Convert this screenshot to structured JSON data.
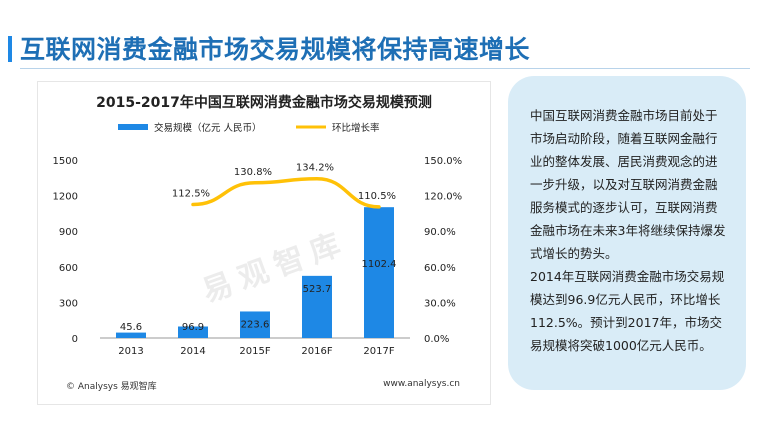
{
  "page": {
    "title": "互联网消费金融市场交易规模将保持高速增长"
  },
  "chart_data": {
    "type": "bar",
    "title": "2015-2017年中国互联网消费金融市场交易规模预测",
    "categories": [
      "2013",
      "2014",
      "2015F",
      "2016F",
      "2017F"
    ],
    "series": [
      {
        "name": "交易规模（亿元 人民币）",
        "type": "bar",
        "axis": "left",
        "color": "#1e88e5",
        "values": [
          45.6,
          96.9,
          223.6,
          523.7,
          1102.4
        ],
        "labels": [
          "45.6",
          "96.9",
          "223.6",
          "523.7",
          "1102.4"
        ]
      },
      {
        "name": "环比增长率",
        "type": "line",
        "axis": "right",
        "color": "#ffc107",
        "values": [
          null,
          112.5,
          130.8,
          134.2,
          110.5
        ],
        "labels": [
          "",
          "112.5%",
          "130.8%",
          "134.2%",
          "110.5%"
        ]
      }
    ],
    "left_axis": {
      "ylim": [
        0,
        1500
      ],
      "ticks": [
        "0",
        "300",
        "600",
        "900",
        "1200",
        "1500"
      ]
    },
    "right_axis": {
      "ylim": [
        0,
        150
      ],
      "ticks": [
        "0.0%",
        "30.0%",
        "60.0%",
        "90.0%",
        "120.0%",
        "150.0%"
      ]
    },
    "legend_position": "top",
    "grid": false
  },
  "chart_footer": {
    "left": "© Analysys 易观智库",
    "right": "www.analysys.cn"
  },
  "watermark": "易观智库",
  "side_text": [
    "中国互联网消费金融市场目前处于市场启动阶段，随着互联网金融行业的整体发展、居民消费观念的进一步升级，以及对互联网消费金融服务模式的逐步认可，互联网消费金融市场在未来3年将继续保持爆发式增长的势头。",
    "2014年互联网消费金融市场交易规模达到96.9亿元人民币，环比增长112.5%。预计到2017年，市场交易规模将突破1000亿元人民币。"
  ]
}
